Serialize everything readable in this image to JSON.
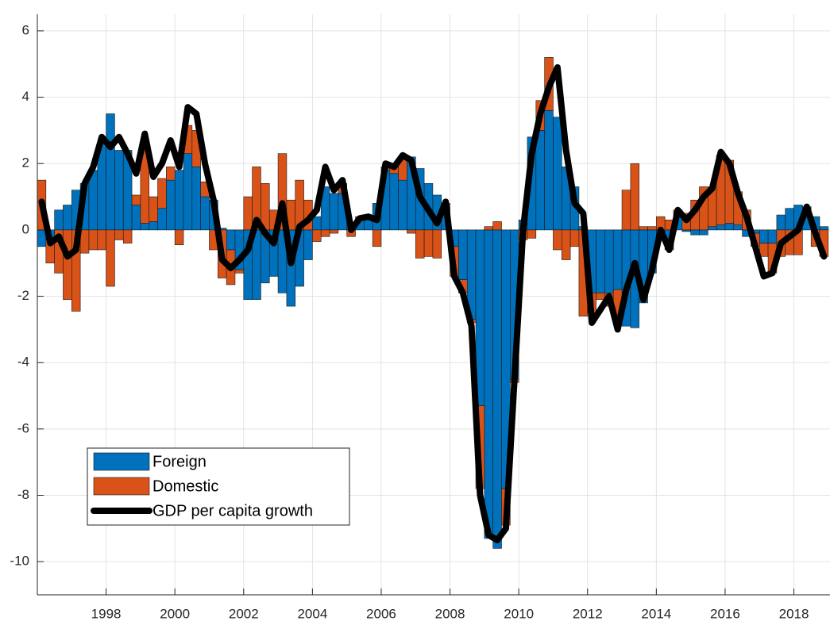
{
  "chart_data": {
    "type": "stacked-bar-line",
    "x": [
      1996.125,
      1996.375,
      1996.625,
      1996.875,
      1997.125,
      1997.375,
      1997.625,
      1997.875,
      1998.125,
      1998.375,
      1998.625,
      1998.875,
      1999.125,
      1999.375,
      1999.625,
      1999.875,
      2000.125,
      2000.375,
      2000.625,
      2000.875,
      2001.125,
      2001.375,
      2001.625,
      2001.875,
      2002.125,
      2002.375,
      2002.625,
      2002.875,
      2003.125,
      2003.375,
      2003.625,
      2003.875,
      2004.125,
      2004.375,
      2004.625,
      2004.875,
      2005.125,
      2005.375,
      2005.625,
      2005.875,
      2006.125,
      2006.375,
      2006.625,
      2006.875,
      2007.125,
      2007.375,
      2007.625,
      2007.875,
      2008.125,
      2008.375,
      2008.625,
      2008.875,
      2009.125,
      2009.375,
      2009.625,
      2009.875,
      2010.125,
      2010.375,
      2010.625,
      2010.875,
      2011.125,
      2011.375,
      2011.625,
      2011.875,
      2012.125,
      2012.375,
      2012.625,
      2012.875,
      2013.125,
      2013.375,
      2013.625,
      2013.875,
      2014.125,
      2014.375,
      2014.625,
      2014.875,
      2015.125,
      2015.375,
      2015.625,
      2015.875,
      2016.125,
      2016.375,
      2016.625,
      2016.875,
      2017.125,
      2017.375,
      2017.625,
      2017.875,
      2018.125,
      2018.375,
      2018.625,
      2018.875
    ],
    "series": [
      {
        "name": "Foreign",
        "kind": "bar",
        "color": "#0072bd",
        "values": [
          -0.5,
          -0.3,
          0.6,
          0.75,
          1.2,
          1.4,
          1.8,
          2.6,
          3.5,
          2.4,
          2.4,
          0.75,
          0.2,
          0.25,
          0.65,
          1.5,
          1.8,
          2.3,
          1.9,
          1.0,
          0.9,
          0.05,
          -0.6,
          -1.2,
          -2.1,
          -2.1,
          -1.6,
          -1.4,
          -1.9,
          -2.3,
          -1.7,
          -0.9,
          0.4,
          1.3,
          1.1,
          1.1,
          0.1,
          0.3,
          0.3,
          0.8,
          1.8,
          1.7,
          1.5,
          2.2,
          1.85,
          1.4,
          1.05,
          0.6,
          -0.5,
          -1.5,
          -2.7,
          -5.3,
          -9.3,
          -9.6,
          -7.8,
          -4.5,
          0.3,
          2.8,
          3.0,
          3.6,
          3.4,
          1.9,
          1.3,
          0.1,
          -1.9,
          -1.9,
          -1.9,
          -1.8,
          -2.9,
          -2.95,
          -2.2,
          -1.3,
          -0.2,
          -0.6,
          0.5,
          -0.05,
          -0.15,
          -0.15,
          0.1,
          0.15,
          0.2,
          0.15,
          -0.2,
          -0.1,
          -0.4,
          -0.4,
          0.45,
          0.65,
          0.75,
          0.7,
          0.4,
          0.1
        ]
      },
      {
        "name": "Domestic",
        "kind": "bar",
        "color": "#d95319",
        "values": [
          1.5,
          -0.7,
          -1.3,
          -2.1,
          -2.45,
          -0.7,
          -0.6,
          -0.6,
          -1.7,
          -0.3,
          -0.4,
          0.3,
          2.2,
          0.75,
          0.9,
          0.4,
          -0.45,
          0.85,
          1.1,
          0.45,
          -0.6,
          -1.45,
          -1.05,
          -0.1,
          1.0,
          1.9,
          1.4,
          0.6,
          2.3,
          0.9,
          1.5,
          0.9,
          -0.35,
          -0.2,
          -0.1,
          0.3,
          -0.2,
          0.1,
          0.1,
          -0.5,
          0.1,
          0.2,
          0.7,
          -0.1,
          -0.85,
          -0.8,
          -0.85,
          0.2,
          -0.9,
          -0.4,
          -0.1,
          -2.5,
          0.1,
          0.25,
          -1.1,
          -0.1,
          -0.3,
          -0.25,
          0.9,
          1.6,
          -0.6,
          -0.9,
          -0.5,
          -2.6,
          -0.6,
          -0.2,
          -0.4,
          -0.9,
          1.2,
          2.0,
          0.1,
          0.1,
          0.4,
          0.3,
          0.1,
          0.5,
          0.9,
          1.3,
          1.2,
          2.1,
          1.9,
          1.0,
          0.6,
          -0.4,
          -0.4,
          -0.9,
          -0.8,
          -0.75,
          -0.75,
          0.0,
          -0.5,
          -0.8
        ]
      },
      {
        "name": "GDP per capita growth",
        "kind": "line",
        "color": "#000000",
        "values": [
          0.85,
          -0.4,
          -0.2,
          -0.8,
          -0.6,
          1.4,
          1.9,
          2.8,
          2.5,
          2.8,
          2.3,
          1.7,
          2.9,
          1.6,
          2.0,
          2.7,
          1.9,
          3.7,
          3.5,
          2.0,
          0.9,
          -0.9,
          -1.15,
          -0.9,
          -0.6,
          0.3,
          -0.1,
          -0.4,
          0.8,
          -1.0,
          0.1,
          0.3,
          0.6,
          1.9,
          1.2,
          1.5,
          0.0,
          0.35,
          0.4,
          0.3,
          2.0,
          1.9,
          2.25,
          2.1,
          1.0,
          0.6,
          0.2,
          0.85,
          -1.4,
          -1.9,
          -2.9,
          -8.0,
          -9.2,
          -9.35,
          -9.0,
          -4.5,
          0.0,
          2.3,
          3.5,
          4.3,
          4.9,
          2.4,
          0.8,
          0.5,
          -2.8,
          -2.4,
          -2.0,
          -3.0,
          -1.8,
          -1.0,
          -2.1,
          -1.2,
          0.0,
          -0.6,
          0.6,
          0.3,
          0.6,
          1.0,
          1.25,
          2.35,
          2.0,
          1.1,
          0.4,
          -0.5,
          -1.4,
          -1.3,
          -0.4,
          -0.2,
          0.0,
          0.7,
          -0.1,
          -0.8
        ]
      }
    ],
    "xlim": [
      1996,
      2019.05
    ],
    "xticks": [
      1998,
      2000,
      2002,
      2004,
      2006,
      2008,
      2010,
      2012,
      2014,
      2016,
      2018
    ],
    "ylim": [
      -11,
      6.5
    ],
    "yticks": [
      -10,
      -8,
      -6,
      -4,
      -2,
      0,
      2,
      4,
      6
    ],
    "grid": true,
    "legend": "lower left"
  }
}
